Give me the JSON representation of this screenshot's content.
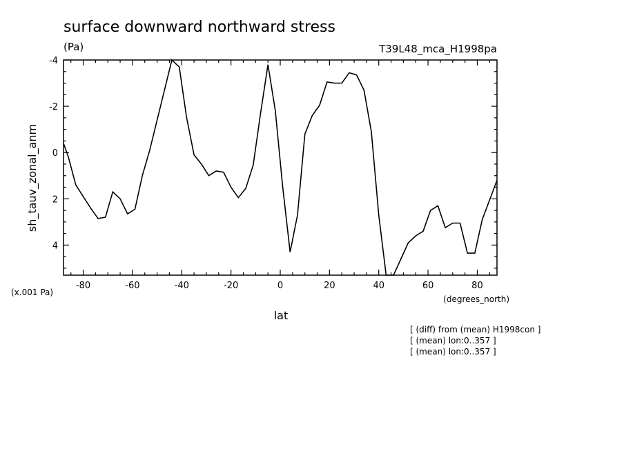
{
  "chart_data": {
    "type": "line",
    "title": "surface downward northward stress",
    "units": "(Pa)",
    "run_label": "T39L48_mca_H1998pa",
    "ylabel": "sh_tauv_zonal_anm",
    "xlabel": "lat",
    "x_units": "(degrees_north)",
    "y_scale_note": "(x.001 Pa)",
    "xlim": [
      -88,
      88
    ],
    "ylim": [
      -4,
      5.3
    ],
    "y_inverted": true,
    "xticks": [
      -80,
      -60,
      -40,
      -20,
      0,
      20,
      40,
      60,
      80
    ],
    "xtick_labels": [
      "-80",
      "-60",
      "-40",
      "-20",
      "0",
      "20",
      "40",
      "60",
      "80"
    ],
    "yticks": [
      -4,
      -2,
      0,
      2,
      4
    ],
    "ytick_labels": [
      "-4",
      "-2",
      "0",
      "2",
      "4"
    ],
    "grid": false,
    "series": [
      {
        "x": [
          -88,
          -86,
          -83,
          -80,
          -77,
          -74,
          -71,
          -68,
          -65,
          -62,
          -59,
          -56,
          -53,
          -50,
          -47,
          -44,
          -41,
          -38,
          -35,
          -32,
          -29,
          -26,
          -23,
          -20,
          -17,
          -14,
          -11,
          -8,
          -5,
          -2,
          1,
          4,
          7,
          10,
          13,
          16,
          19,
          22,
          25,
          28,
          31,
          34,
          37,
          40,
          43,
          46,
          49,
          52,
          55,
          58,
          61,
          64,
          67,
          70,
          73,
          76,
          79,
          82,
          85,
          88
        ],
        "y": [
          -0.4,
          0.2,
          1.4,
          1.9,
          2.4,
          2.85,
          2.8,
          1.7,
          2.0,
          2.65,
          2.45,
          1.0,
          -0.1,
          -1.4,
          -2.7,
          -4.0,
          -3.7,
          -1.5,
          0.1,
          0.5,
          1.0,
          0.8,
          0.85,
          1.5,
          1.95,
          1.55,
          0.55,
          -1.7,
          -3.8,
          -1.8,
          1.5,
          4.3,
          2.7,
          -0.8,
          -1.6,
          -2.05,
          -3.05,
          -3.0,
          -3.0,
          -3.45,
          -3.35,
          -2.7,
          -0.9,
          2.7,
          5.3,
          5.3,
          4.6,
          3.9,
          3.6,
          3.4,
          2.5,
          2.3,
          3.25,
          3.05,
          3.05,
          4.35,
          4.35,
          2.9,
          2.05,
          1.2
        ]
      }
    ]
  },
  "notes": [
    "[ (diff) from (mean) H1998con ]",
    "[ (mean) lon:0..357 ]",
    "[ (mean) lon:0..357 ]"
  ]
}
